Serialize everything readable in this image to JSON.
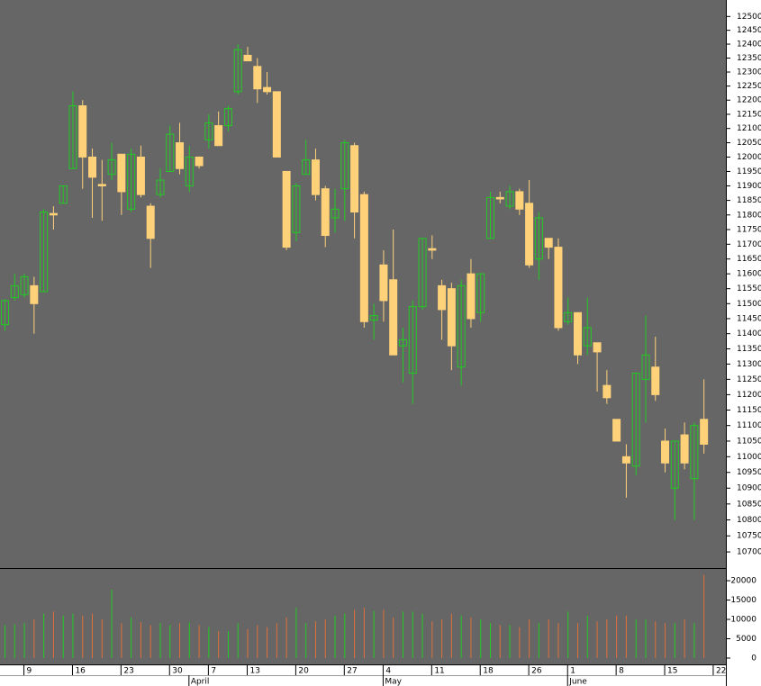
{
  "chart_data": {
    "type": "candlestick",
    "categories": [
      null,
      null,
      "9",
      null,
      null,
      null,
      null,
      "16",
      null,
      null,
      null,
      null,
      "23",
      null,
      null,
      null,
      null,
      "30",
      null,
      null,
      null,
      "7",
      null,
      null,
      null,
      "13",
      null,
      null,
      null,
      null,
      "20",
      null,
      null,
      null,
      null,
      "27",
      null,
      null,
      null,
      "4",
      null,
      null,
      null,
      null,
      "11",
      null,
      null,
      null,
      null,
      "18",
      null,
      null,
      null,
      null,
      "26",
      null,
      null,
      null,
      "1",
      null,
      null,
      null,
      null,
      "8",
      null,
      null,
      null,
      null,
      "15",
      null,
      null,
      null,
      null
    ],
    "x_end_label": "22",
    "month_labels": [
      null,
      null,
      null,
      null,
      null,
      null,
      null,
      null,
      null,
      null,
      null,
      null,
      null,
      null,
      null,
      null,
      null,
      null,
      null,
      "April",
      null,
      null,
      null,
      null,
      null,
      null,
      null,
      null,
      null,
      null,
      null,
      null,
      null,
      null,
      null,
      null,
      null,
      null,
      null,
      "May",
      null,
      null,
      null,
      null,
      null,
      null,
      null,
      null,
      null,
      null,
      null,
      null,
      null,
      null,
      null,
      null,
      null,
      null,
      "June",
      null,
      null,
      null,
      null,
      null,
      null,
      null,
      null,
      null,
      null,
      null,
      null,
      null,
      null
    ],
    "open": [
      11430,
      11520,
      11530,
      11560,
      11540,
      11805,
      11840,
      11960,
      12180,
      12000,
      11905,
      11940,
      12010,
      11820,
      12000,
      11830,
      11870,
      11950,
      12050,
      11900,
      12000,
      12060,
      12110,
      12110,
      12230,
      12360,
      12320,
      12245,
      12230,
      11950,
      11740,
      11940,
      11990,
      11890,
      11790,
      11890,
      12040,
      11870,
      11445,
      11630,
      11580,
      11360,
      11270,
      11490,
      11685,
      11560,
      11550,
      11290,
      11600,
      11470,
      11720,
      11860,
      11830,
      11880,
      11840,
      11650,
      11720,
      11690,
      11440,
      11470,
      11360,
      11370,
      11230,
      11120,
      11000,
      10970,
      11250,
      11290,
      11050,
      10900,
      11070,
      10930,
      11120
    ],
    "high": [
      11515,
      11600,
      11600,
      11590,
      11820,
      11830,
      11900,
      12230,
      12200,
      12030,
      11990,
      12050,
      12010,
      12030,
      12040,
      11840,
      11960,
      12110,
      12120,
      12040,
      12000,
      12150,
      12160,
      12180,
      12400,
      12390,
      12350,
      12300,
      12230,
      11950,
      11910,
      12060,
      12030,
      11900,
      11890,
      12060,
      12050,
      11880,
      11500,
      11680,
      11750,
      11420,
      11510,
      11720,
      11730,
      11580,
      11570,
      11580,
      11650,
      11600,
      11880,
      11880,
      11900,
      11890,
      11920,
      11810,
      11720,
      11720,
      11520,
      11470,
      11520,
      11370,
      11280,
      11120,
      11040,
      11270,
      11460,
      11390,
      11090,
      11050,
      11110,
      11110,
      11250
    ],
    "low": [
      11410,
      11510,
      11520,
      11400,
      11540,
      11750,
      11840,
      11960,
      11890,
      11790,
      11780,
      11920,
      11800,
      11810,
      11860,
      11620,
      11860,
      11950,
      11940,
      11880,
      11960,
      12030,
      12040,
      12090,
      12220,
      12340,
      12190,
      12220,
      12000,
      11680,
      11710,
      11940,
      11850,
      11690,
      11740,
      11780,
      11720,
      11420,
      11380,
      11440,
      11330,
      11240,
      11170,
      11480,
      11650,
      11380,
      11280,
      11230,
      11420,
      11440,
      11720,
      11840,
      11820,
      11800,
      11620,
      11580,
      11650,
      11410,
      11430,
      11300,
      11330,
      11210,
      11170,
      11050,
      10870,
      10940,
      11110,
      11180,
      10950,
      10800,
      10960,
      10800,
      11010
    ],
    "close": [
      11510,
      11560,
      11590,
      11500,
      11810,
      11800,
      11900,
      12180,
      12000,
      11930,
      11900,
      11990,
      11880,
      12010,
      11870,
      11720,
      11920,
      12080,
      11960,
      12000,
      11970,
      12120,
      12040,
      12170,
      12380,
      12340,
      12240,
      12230,
      12000,
      11690,
      11900,
      11990,
      11870,
      11730,
      11820,
      12050,
      11810,
      11440,
      11460,
      11510,
      11330,
      11380,
      11490,
      11720,
      11680,
      11480,
      11360,
      11560,
      11450,
      11600,
      11860,
      11855,
      11880,
      11820,
      11630,
      11790,
      11690,
      11420,
      11470,
      11330,
      11420,
      11340,
      11190,
      11050,
      10980,
      11270,
      11330,
      11200,
      10980,
      11050,
      10980,
      11100,
      11040
    ],
    "up_color": "#22cc22",
    "down_color": "#ffd27a",
    "ylim": [
      10650,
      12560
    ],
    "log_scale": true,
    "yticks": [
      10700,
      10750,
      10800,
      10850,
      10900,
      10950,
      11000,
      11050,
      11100,
      11150,
      11200,
      11250,
      11300,
      11350,
      11400,
      11450,
      11500,
      11550,
      11600,
      11650,
      11700,
      11750,
      11800,
      11850,
      11900,
      11950,
      12000,
      12050,
      12100,
      12150,
      12200,
      12250,
      12300,
      12350,
      12400,
      12450,
      12500
    ],
    "volume": {
      "values": [
        8500,
        8700,
        9000,
        10000,
        11500,
        12000,
        11000,
        11500,
        11000,
        11500,
        10000,
        17700,
        9000,
        10500,
        9300,
        8500,
        9000,
        8500,
        9000,
        9200,
        8500,
        8000,
        7000,
        7000,
        9000,
        7500,
        8500,
        8000,
        9000,
        10500,
        13000,
        9000,
        9500,
        10000,
        11000,
        11500,
        12500,
        13000,
        12200,
        12500,
        10500,
        12000,
        12000,
        11500,
        9500,
        10000,
        11500,
        11000,
        10500,
        10000,
        9000,
        8500,
        8500,
        8000,
        10000,
        9000,
        10000,
        9000,
        12000,
        9000,
        11000,
        9500,
        10000,
        11000,
        11000,
        10000,
        10000,
        9500,
        9000,
        9000,
        10000,
        9000,
        21500
      ],
      "ylim": [
        0,
        22800
      ],
      "yticks": [
        0,
        5000,
        10000,
        15000,
        20000
      ]
    }
  }
}
